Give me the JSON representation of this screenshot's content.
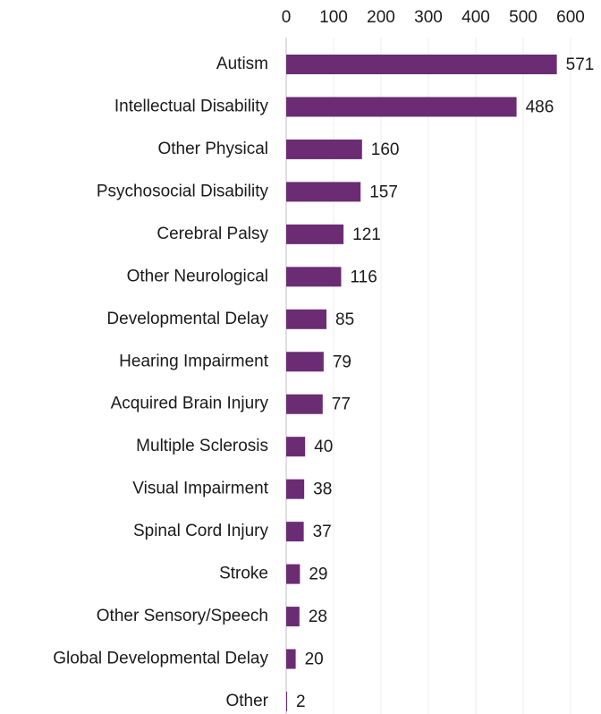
{
  "chart_data": {
    "type": "bar",
    "orientation": "horizontal",
    "categories": [
      "Autism",
      "Intellectual Disability",
      "Other Physical",
      "Psychosocial Disability",
      "Cerebral Palsy",
      "Other Neurological",
      "Developmental Delay",
      "Hearing Impairment",
      "Acquired Brain Injury",
      "Multiple Sclerosis",
      "Visual Impairment",
      "Spinal Cord Injury",
      "Stroke",
      "Other Sensory/Speech",
      "Global Developmental Delay",
      "Other"
    ],
    "values": [
      571,
      486,
      160,
      157,
      121,
      116,
      85,
      79,
      77,
      40,
      38,
      37,
      29,
      28,
      20,
      2
    ],
    "color": "#6b2c74",
    "xlim": [
      0,
      600
    ],
    "xticks": [
      0,
      100,
      200,
      300,
      400,
      500,
      600
    ],
    "grid": true
  }
}
